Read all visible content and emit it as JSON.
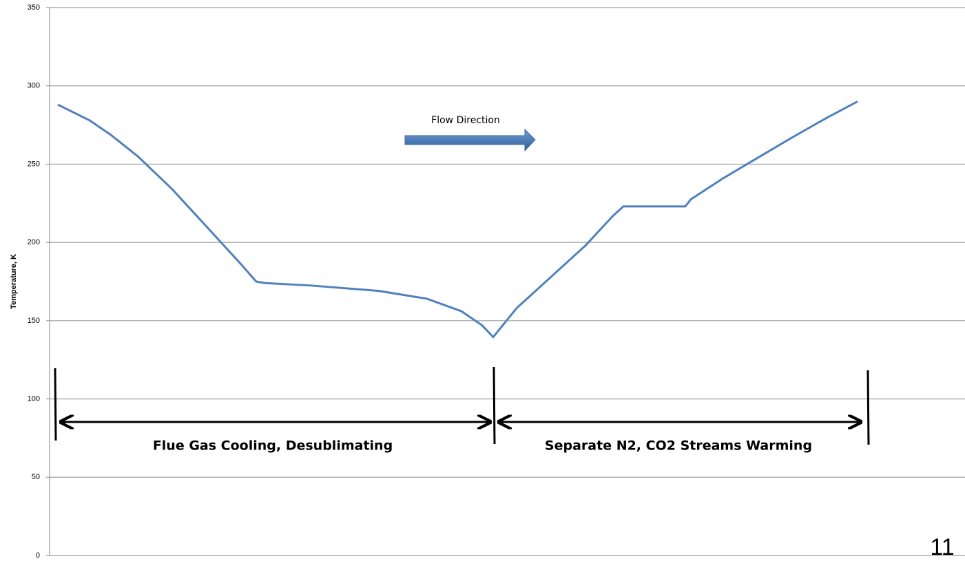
{
  "chart_data": {
    "type": "line",
    "ylabel": "Temperature, K",
    "xlim": [
      0,
      100
    ],
    "x": [
      0.9,
      4.36,
      6.62,
      9.63,
      13.39,
      17.16,
      20.92,
      22.57,
      23.55,
      28.44,
      35.97,
      41.23,
      45.0,
      47.25,
      48.46,
      51.02,
      54.78,
      58.54,
      61.55,
      62.68,
      69.45,
      70.05,
      73.59,
      77.35,
      81.11,
      84.88,
      88.26
    ],
    "series": [
      {
        "color": "#4f81bd",
        "values": [
          288,
          278,
          269,
          255,
          234,
          210,
          186,
          175,
          174,
          172.5,
          169,
          164,
          156,
          147,
          139.5,
          158,
          178,
          198,
          217,
          223,
          223,
          227.5,
          241,
          254,
          267,
          279.5,
          290
        ]
      }
    ],
    "ylim": [
      0,
      350
    ],
    "yticks": [
      0,
      50,
      100,
      150,
      200,
      250,
      300,
      350
    ],
    "grid": true,
    "annotations": [
      "Flow Direction",
      "Flue Gas Cooling, Desublimating",
      "Separate N2, CO2 Streams Warming"
    ],
    "page_number": "11"
  }
}
